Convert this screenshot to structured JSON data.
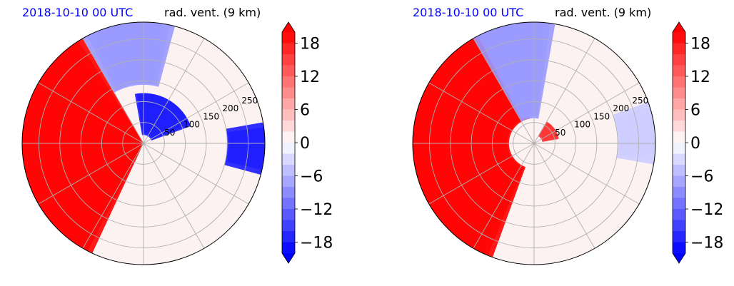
{
  "colors": {
    "date_title": "#0000ff",
    "strong_positive": "#ff0000",
    "strong_negative": "#0000ff",
    "neutral": "#fdf2f2",
    "grid": "#b0b0b0",
    "outline": "#000000"
  },
  "chart_data": [
    {
      "type": "heatmap",
      "projection": "polar",
      "title_left": "2018-10-10 00 UTC",
      "title_right": "rad. vent. (9 km)",
      "radial_tick_labels": [
        "50",
        "100",
        "150",
        "200",
        "250"
      ],
      "radial_ticks": [
        50,
        100,
        150,
        200,
        250
      ],
      "radial_range": [
        0,
        290
      ],
      "grid": true,
      "colorbar": {
        "label_values": [
          18,
          12,
          6,
          0,
          -6,
          -12,
          -18
        ],
        "tick_labels": [
          "18",
          "12",
          "6",
          "0",
          "−6",
          "−12",
          "−18"
        ],
        "range": [
          -20,
          20
        ],
        "levels": [
          -20,
          -18,
          -16,
          -14,
          -12,
          -10,
          -8,
          -6,
          -4,
          -2,
          0,
          2,
          4,
          6,
          8,
          10,
          12,
          14,
          16,
          18,
          20
        ],
        "extend": "both",
        "cmap": "bwr"
      },
      "regions": [
        {
          "azimuth_deg": [
            120,
            245
          ],
          "radius_km": [
            0,
            290
          ],
          "value": 20
        },
        {
          "azimuth_deg": [
            20,
            100
          ],
          "radius_km": [
            20,
            120
          ],
          "value": -18
        },
        {
          "azimuth_deg": [
            75,
            120
          ],
          "radius_km": [
            140,
            290
          ],
          "value": -8
        },
        {
          "azimuth_deg": [
            -15,
            10
          ],
          "radius_km": [
            200,
            290
          ],
          "value": -18
        }
      ]
    },
    {
      "type": "heatmap",
      "projection": "polar",
      "title_left": "2018-10-10 00 UTC",
      "title_right": "rad. vent. (9 km)",
      "radial_tick_labels": [
        "50",
        "100",
        "150",
        "200",
        "250"
      ],
      "radial_ticks": [
        50,
        100,
        150,
        200,
        250
      ],
      "radial_range": [
        0,
        290
      ],
      "grid": true,
      "colorbar": {
        "label_values": [
          18,
          12,
          6,
          0,
          -6,
          -12,
          -18
        ],
        "tick_labels": [
          "18",
          "12",
          "6",
          "0",
          "−6",
          "−12",
          "−18"
        ],
        "range": [
          -20,
          20
        ],
        "levels": [
          -20,
          -18,
          -16,
          -14,
          -12,
          -10,
          -8,
          -6,
          -4,
          -2,
          0,
          2,
          4,
          6,
          8,
          10,
          12,
          14,
          16,
          18,
          20
        ],
        "extend": "both",
        "cmap": "bwr"
      },
      "regions": [
        {
          "azimuth_deg": [
            100,
            250
          ],
          "radius_km": [
            60,
            290
          ],
          "value": 20
        },
        {
          "azimuth_deg": [
            10,
            60
          ],
          "radius_km": [
            20,
            60
          ],
          "value": 16
        },
        {
          "azimuth_deg": [
            80,
            120
          ],
          "radius_km": [
            60,
            290
          ],
          "value": -8
        },
        {
          "azimuth_deg": [
            -10,
            20
          ],
          "radius_km": [
            200,
            290
          ],
          "value": -4
        }
      ]
    }
  ]
}
